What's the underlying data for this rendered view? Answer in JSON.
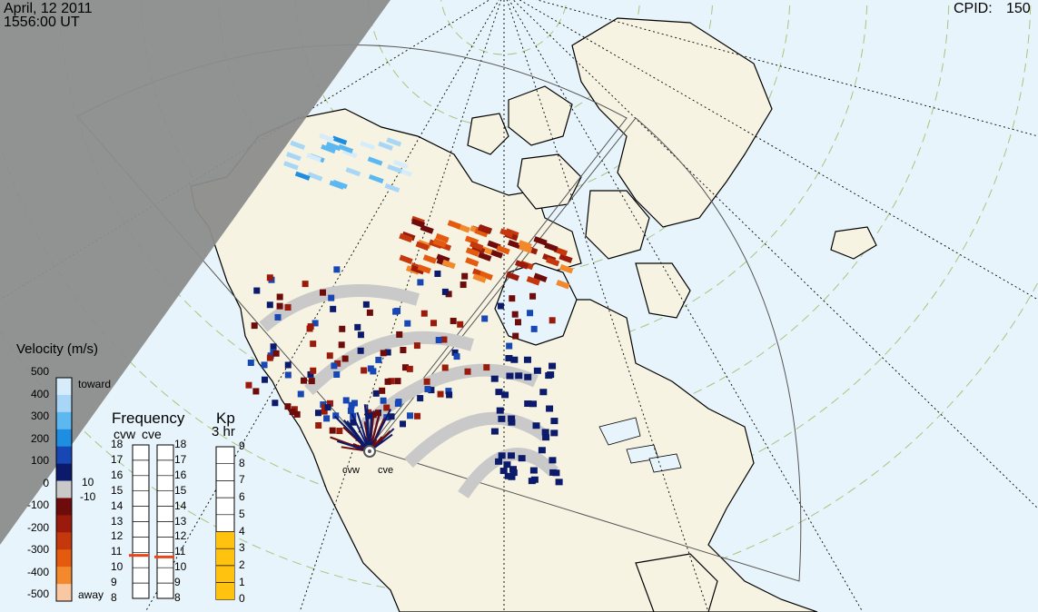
{
  "header": {
    "date": "April, 12 2011",
    "time": "1556:00 UT",
    "cpid_label": "CPID:",
    "cpid_value": "150"
  },
  "velocity_scale": {
    "title": "Velocity (m/s)",
    "ticks": [
      "500",
      "400",
      "300",
      "200",
      "100",
      "0",
      "-100",
      "-200",
      "-300",
      "-400",
      "-500"
    ],
    "toward_label": "toward",
    "away_label": "away",
    "plus_label": "10",
    "minus_label": "-10",
    "colors": {
      "toward": [
        "#d6ecfb",
        "#a8d6f6",
        "#5db8f1",
        "#1f8de0",
        "#1747b4",
        "#0c1a6b"
      ],
      "away": [
        "#6e0b0b",
        "#9a1b0b",
        "#c5370c",
        "#e45a0e",
        "#f2892c",
        "#f9c7a2"
      ],
      "ground_scatter": "#c9c9c9"
    }
  },
  "frequency_panel": {
    "title": "Frequency",
    "radars": [
      "cvw",
      "cve"
    ],
    "ticks": [
      "18",
      "17",
      "16",
      "15",
      "14",
      "13",
      "12",
      "11",
      "10",
      "9",
      "8"
    ],
    "markers": [
      {
        "radar": "cvw",
        "value_mhz": 10.8
      },
      {
        "radar": "cve",
        "value_mhz": 10.7
      }
    ],
    "marker_color": "#e8461a"
  },
  "kp_panel": {
    "title": "Kp",
    "subtitle": "3 hr",
    "ticks": [
      "9",
      "8",
      "7",
      "6",
      "5",
      "4",
      "3",
      "2",
      "1",
      "0"
    ],
    "value": 4,
    "fill_color": "#ffc20e"
  },
  "map": {
    "radar_labels": [
      "cvw",
      "cve"
    ],
    "land_color": "#f6f3e2",
    "ocean_color": "#e8f4fb",
    "night_color": "#8c8c8c"
  }
}
